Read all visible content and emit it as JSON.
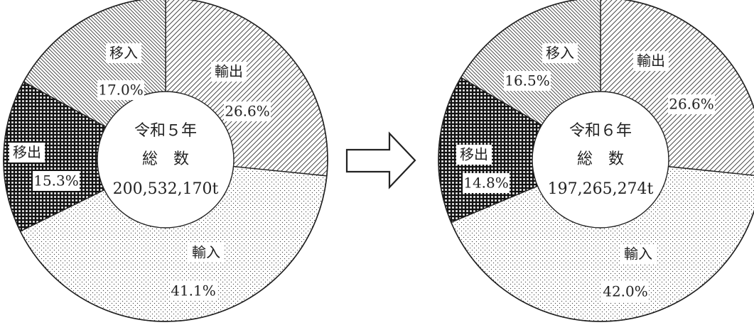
{
  "chart_data": [
    {
      "type": "pie",
      "donut": true,
      "center_label": {
        "line1": "令和５年",
        "line2": "総　数",
        "line3": "200,532,170t"
      },
      "slices": [
        {
          "name": "輸出",
          "value": 26.6,
          "label": "26.6%",
          "pattern": "diag-fwd"
        },
        {
          "name": "輸入",
          "value": 41.1,
          "label": "41.1%",
          "pattern": "dots"
        },
        {
          "name": "移出",
          "value": 15.3,
          "label": "15.3%",
          "pattern": "checker"
        },
        {
          "name": "移入",
          "value": 17.0,
          "label": "17.0%",
          "pattern": "diag-back"
        }
      ]
    },
    {
      "type": "pie",
      "donut": true,
      "center_label": {
        "line1": "令和６年",
        "line2": "総　数",
        "line3": "197,265,274t"
      },
      "slices": [
        {
          "name": "輸出",
          "value": 26.6,
          "label": "26.6%",
          "pattern": "diag-fwd"
        },
        {
          "name": "輸入",
          "value": 42.0,
          "label": "42.0%",
          "pattern": "dots"
        },
        {
          "name": "移出",
          "value": 14.8,
          "label": "14.8%",
          "pattern": "checker"
        },
        {
          "name": "移入",
          "value": 16.5,
          "label": "16.5%",
          "pattern": "diag-back"
        }
      ]
    }
  ],
  "arrow": {
    "icon": "right-arrow-icon"
  },
  "colors": {
    "stroke": "#222222",
    "checker": "#111111",
    "background": "#ffffff"
  }
}
